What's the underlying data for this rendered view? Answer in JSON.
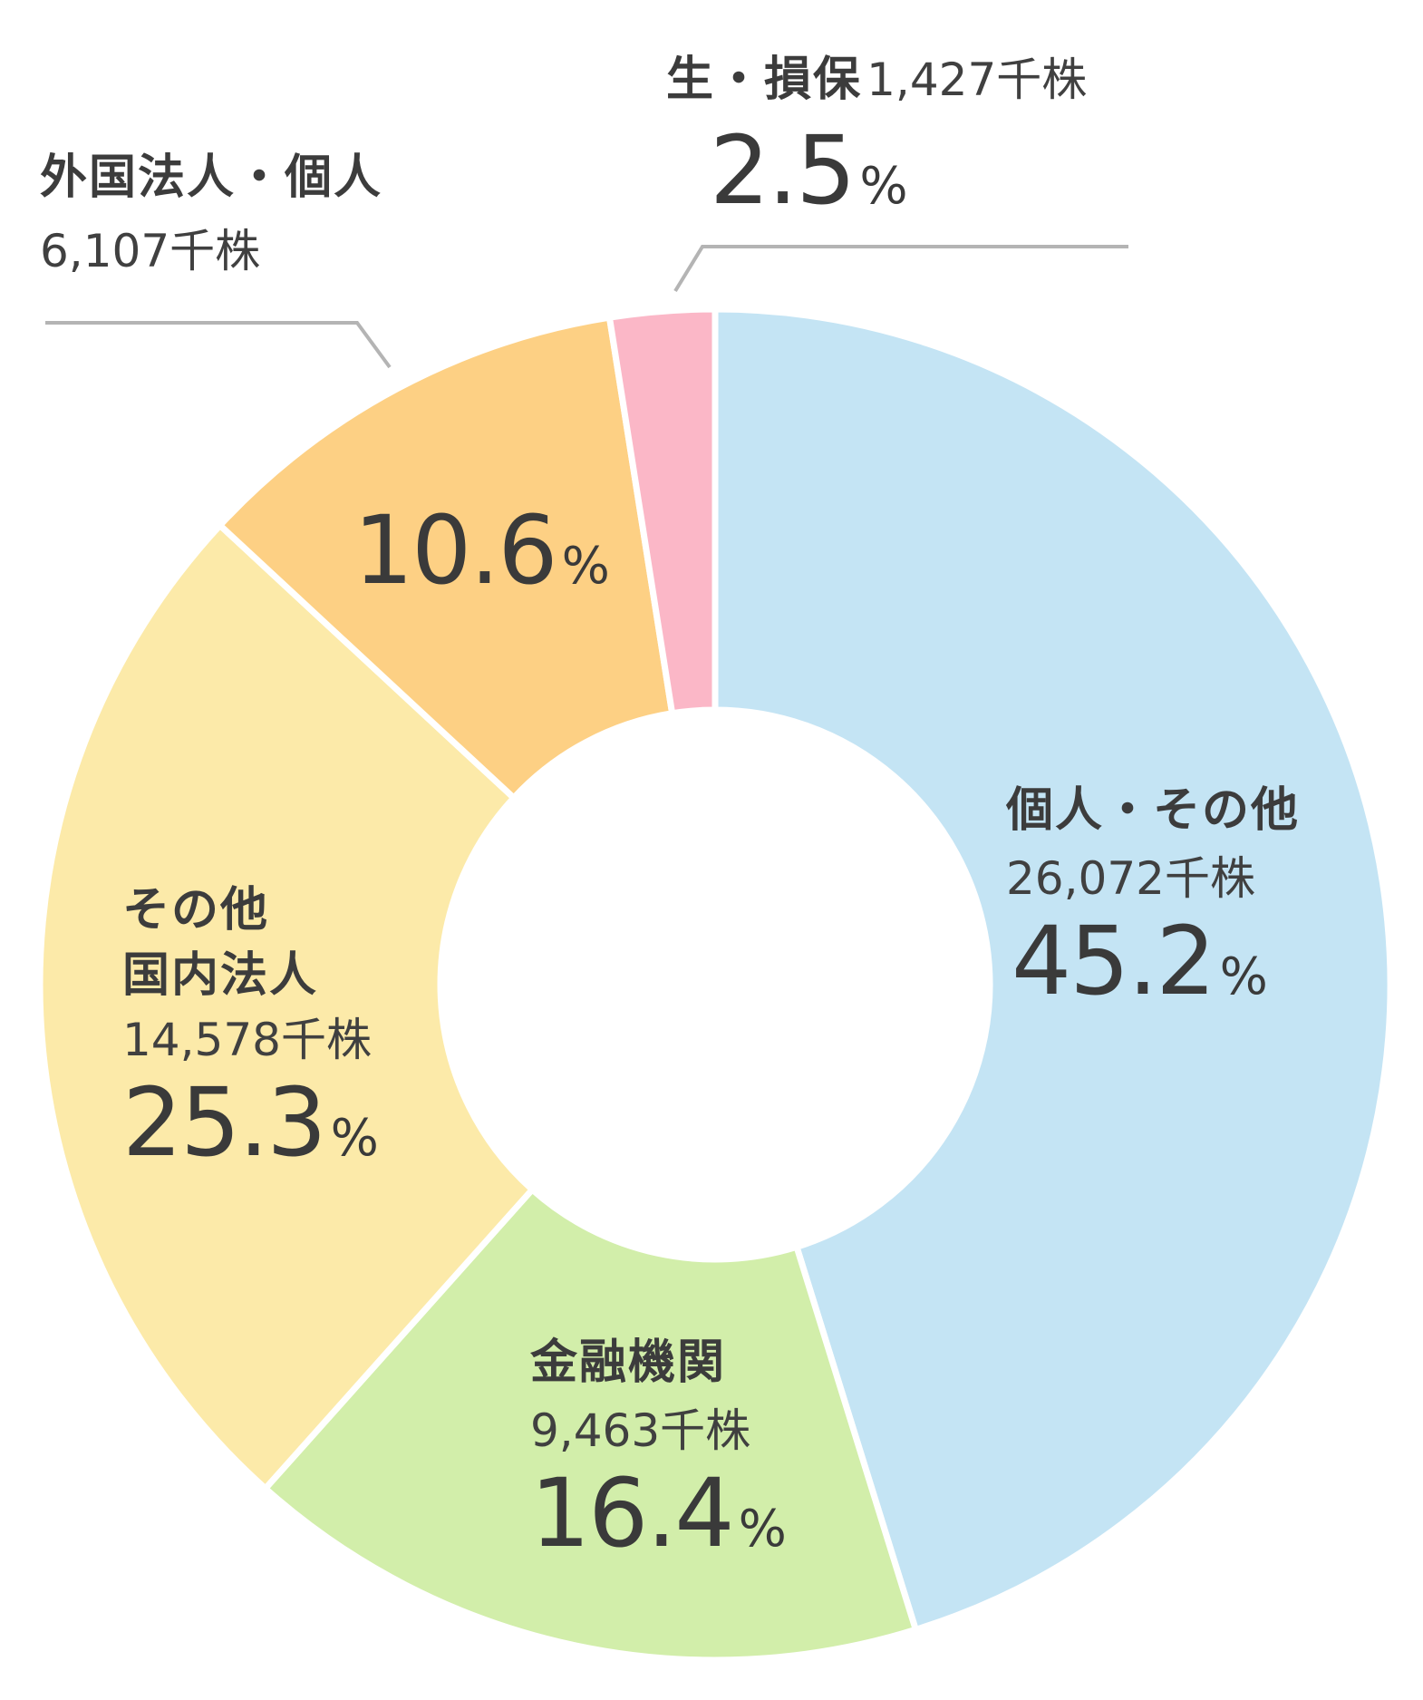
{
  "chart_data": {
    "type": "pie",
    "donut": true,
    "start_angle_deg": 0,
    "direction": "clockwise",
    "legend": "none",
    "unit_shares": "千株",
    "unit_pct": "%",
    "slices": [
      {
        "key": "individuals",
        "name": "個人・その他",
        "shares": "26,072",
        "value": 45.2,
        "pct_label": "45.2",
        "color": "#c4e4f4"
      },
      {
        "key": "financial",
        "name": "金融機関",
        "shares": "9,463",
        "value": 16.4,
        "pct_label": "16.4",
        "color": "#d2eeaa"
      },
      {
        "key": "domestic",
        "name_line1": "その他",
        "name_line2": "国内法人",
        "shares": "14,578",
        "value": 25.3,
        "pct_label": "25.3",
        "color": "#fceaa9"
      },
      {
        "key": "foreign",
        "name": "外国法人・個人",
        "shares": "6,107",
        "value": 10.6,
        "pct_label": "10.6",
        "color": "#fdd084"
      },
      {
        "key": "insurance",
        "name": "生・損保",
        "shares": "1,427",
        "value": 2.5,
        "pct_label": "2.5",
        "color": "#fbb7c7"
      }
    ]
  }
}
